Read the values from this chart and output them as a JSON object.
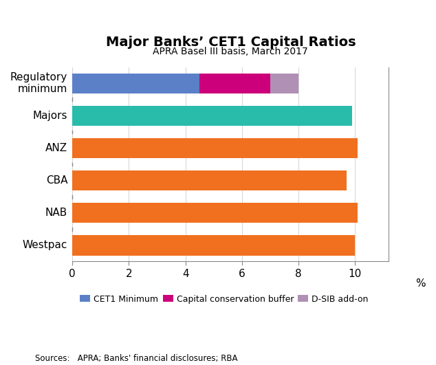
{
  "title": "Major Banks’ CET1 Capital Ratios",
  "subtitle": "APRA Basel III basis, March 2017",
  "source": "Sources:   APRA; Banks' financial disclosures; RBA",
  "reg_min": {
    "cet1_min": 4.5,
    "cap_cons": 2.5,
    "dsib": 1.0
  },
  "single_bar_values": {
    "Majors": 9.9,
    "ANZ": 10.1,
    "CBA": 9.7,
    "NAB": 10.1,
    "Westpac": 10.0
  },
  "colors": {
    "cet1_min": "#5b80c8",
    "cap_cons": "#cc007a",
    "dsib": "#b090b5",
    "majors": "#2abcab",
    "banks": "#f07020"
  },
  "xlim": [
    0,
    11.2
  ],
  "xticks": [
    0,
    2,
    4,
    6,
    8,
    10
  ],
  "xlabel_pct": "%",
  "legend": {
    "CET1 Minimum": "#5b80c8",
    "Capital conservation buffer": "#cc007a",
    "D-SIB add-on": "#b090b5"
  },
  "figsize": [
    6.34,
    5.31
  ],
  "dpi": 100,
  "bar_height": 0.62
}
